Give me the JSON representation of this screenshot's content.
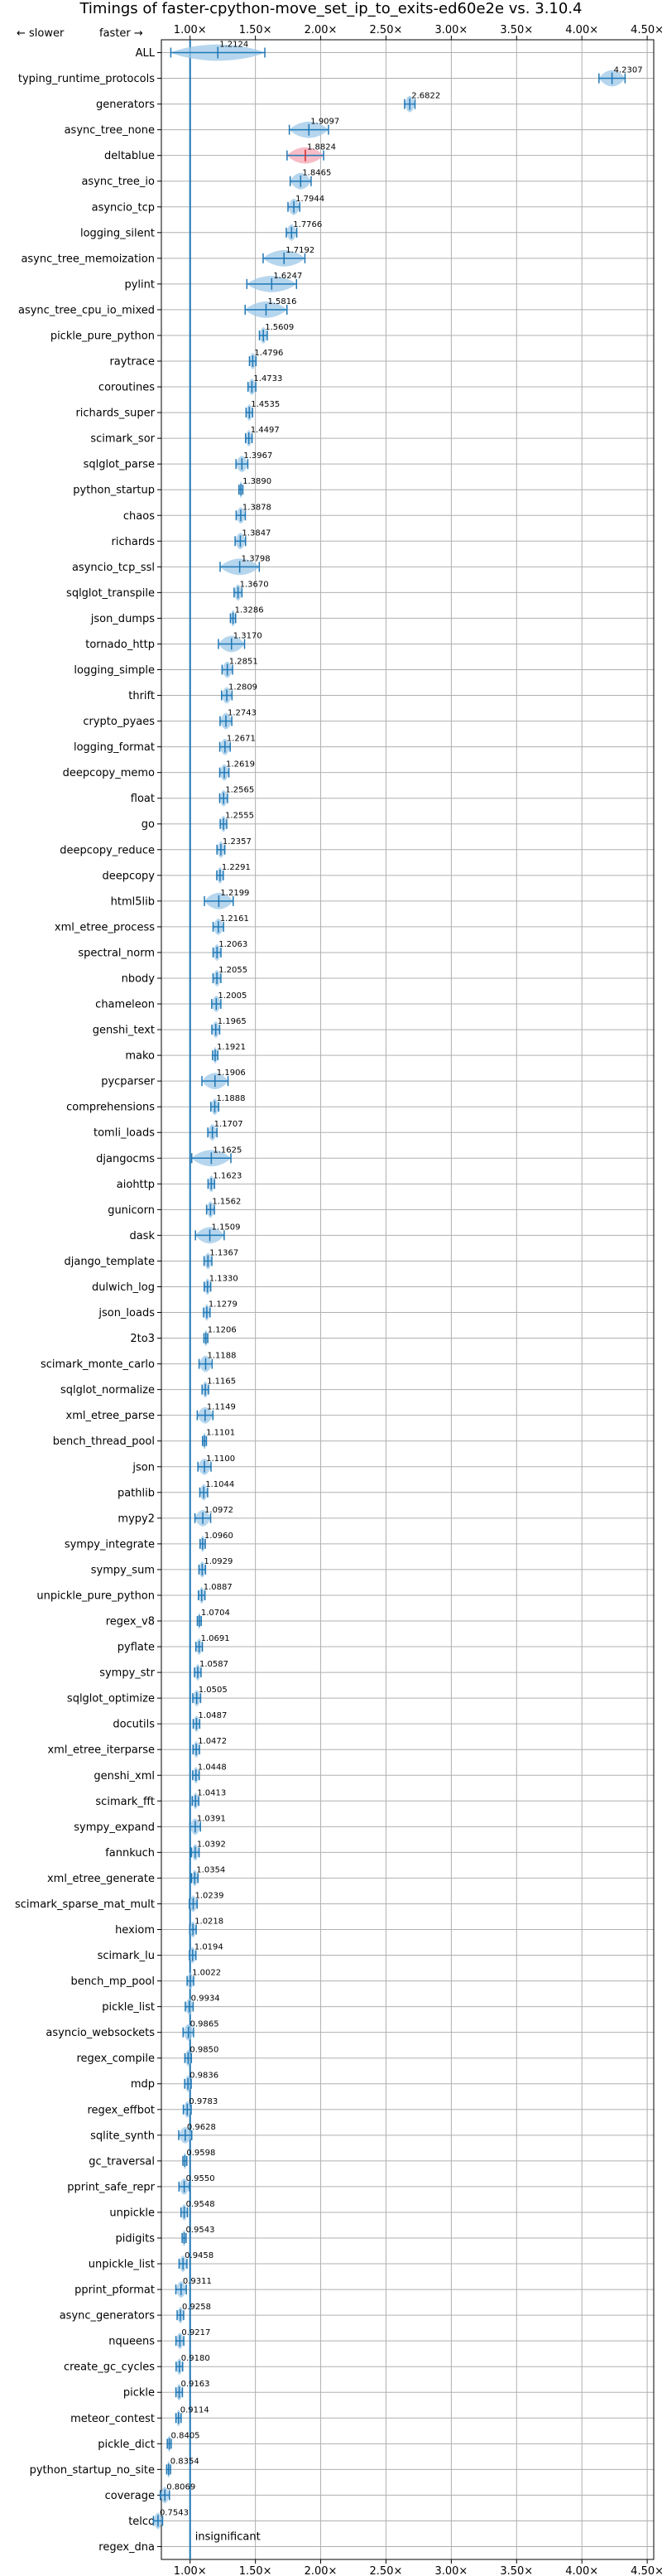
{
  "chart_data": {
    "type": "violin",
    "title": "Timings of faster-cpython-move_set_ip_to_exits-ed60e2e vs. 3.10.4",
    "xlim": [
      0.78,
      4.55
    ],
    "grid": true,
    "reference_x": 1.0,
    "xticks": [
      {
        "value": 1.0,
        "label": "1.00×"
      },
      {
        "value": 1.5,
        "label": "1.50×"
      },
      {
        "value": 2.0,
        "label": "2.00×"
      },
      {
        "value": 2.5,
        "label": "2.50×"
      },
      {
        "value": 3.0,
        "label": "3.00×"
      },
      {
        "value": 3.5,
        "label": "3.50×"
      },
      {
        "value": 4.0,
        "label": "4.00×"
      },
      {
        "value": 4.5,
        "label": "4.50×"
      }
    ],
    "direction_note": {
      "slower": "←  slower",
      "faster": "faster  →"
    },
    "insignificant_label": "insignificant",
    "colors": {
      "violin": "#9ec8e8",
      "line": "#1f77b4",
      "highlight": "#f4a6b4",
      "grid": "#b0b0b0"
    },
    "categories": [
      "ALL",
      "typing_runtime_protocols",
      "generators",
      "async_tree_none",
      "deltablue",
      "async_tree_io",
      "asyncio_tcp",
      "logging_silent",
      "async_tree_memoization",
      "pylint",
      "async_tree_cpu_io_mixed",
      "pickle_pure_python",
      "raytrace",
      "coroutines",
      "richards_super",
      "scimark_sor",
      "sqlglot_parse",
      "python_startup",
      "chaos",
      "richards",
      "asyncio_tcp_ssl",
      "sqlglot_transpile",
      "json_dumps",
      "tornado_http",
      "logging_simple",
      "thrift",
      "crypto_pyaes",
      "logging_format",
      "deepcopy_memo",
      "float",
      "go",
      "deepcopy_reduce",
      "deepcopy",
      "html5lib",
      "xml_etree_process",
      "spectral_norm",
      "nbody",
      "chameleon",
      "genshi_text",
      "mako",
      "pycparser",
      "comprehensions",
      "tomli_loads",
      "djangocms",
      "aiohttp",
      "gunicorn",
      "dask",
      "django_template",
      "dulwich_log",
      "json_loads",
      "2to3",
      "scimark_monte_carlo",
      "sqlglot_normalize",
      "xml_etree_parse",
      "bench_thread_pool",
      "json",
      "pathlib",
      "mypy2",
      "sympy_integrate",
      "sympy_sum",
      "unpickle_pure_python",
      "regex_v8",
      "pyflate",
      "sympy_str",
      "sqlglot_optimize",
      "docutils",
      "xml_etree_iterparse",
      "genshi_xml",
      "scimark_fft",
      "sympy_expand",
      "fannkuch",
      "xml_etree_generate",
      "scimark_sparse_mat_mult",
      "hexiom",
      "scimark_lu",
      "bench_mp_pool",
      "pickle_list",
      "asyncio_websockets",
      "regex_compile",
      "mdp",
      "regex_effbot",
      "sqlite_synth",
      "gc_traversal",
      "pprint_safe_repr",
      "unpickle",
      "pidigits",
      "unpickle_list",
      "pprint_pformat",
      "async_generators",
      "nqueens",
      "create_gc_cycles",
      "pickle",
      "meteor_contest",
      "pickle_dict",
      "python_startup_no_site",
      "coverage",
      "telco",
      "regex_dna"
    ],
    "values": [
      1.2124,
      4.2307,
      2.6822,
      1.9097,
      1.8824,
      1.8465,
      1.7944,
      1.7766,
      1.7192,
      1.6247,
      1.5816,
      1.5609,
      1.4796,
      1.4733,
      1.4535,
      1.4497,
      1.3967,
      1.389,
      1.3878,
      1.3847,
      1.3798,
      1.367,
      1.3286,
      1.317,
      1.2851,
      1.2809,
      1.2743,
      1.2671,
      1.2619,
      1.2565,
      1.2555,
      1.2357,
      1.2291,
      1.2199,
      1.2161,
      1.2063,
      1.2055,
      1.2005,
      1.1965,
      1.1921,
      1.1906,
      1.1888,
      1.1707,
      1.1625,
      1.1623,
      1.1562,
      1.1509,
      1.1367,
      1.133,
      1.1279,
      1.1206,
      1.1188,
      1.1165,
      1.1149,
      1.1101,
      1.11,
      1.1044,
      1.0972,
      1.096,
      1.0929,
      1.0887,
      1.0704,
      1.0691,
      1.0587,
      1.0505,
      1.0487,
      1.0472,
      1.0448,
      1.0413,
      1.0391,
      1.0392,
      1.0354,
      1.0239,
      1.0218,
      1.0194,
      1.0022,
      0.9934,
      0.9865,
      0.985,
      0.9836,
      0.9783,
      0.9628,
      0.9598,
      0.955,
      0.9548,
      0.9543,
      0.9458,
      0.9311,
      0.9258,
      0.9217,
      0.918,
      0.9163,
      0.9114,
      0.8405,
      0.8354,
      0.8069,
      0.7543,
      null
    ],
    "value_labels": [
      "1.2124",
      "4.2307",
      "2.6822",
      "1.9097",
      "1.8824",
      "1.8465",
      "1.7944",
      "1.7766",
      "1.7192",
      "1.6247",
      "1.5816",
      "1.5609",
      "1.4796",
      "1.4733",
      "1.4535",
      "1.4497",
      "1.3967",
      "1.3890",
      "1.3878",
      "1.3847",
      "1.3798",
      "1.3670",
      "1.3286",
      "1.3170",
      "1.2851",
      "1.2809",
      "1.2743",
      "1.2671",
      "1.2619",
      "1.2565",
      "1.2555",
      "1.2357",
      "1.2291",
      "1.2199",
      "1.2161",
      "1.2063",
      "1.2055",
      "1.2005",
      "1.1965",
      "1.1921",
      "1.1906",
      "1.1888",
      "1.1707",
      "1.1625",
      "1.1623",
      "1.1562",
      "1.1509",
      "1.1367",
      "1.1330",
      "1.1279",
      "1.1206",
      "1.1188",
      "1.1165",
      "1.1149",
      "1.1101",
      "1.1100",
      "1.1044",
      "1.0972",
      "1.0960",
      "1.0929",
      "1.0887",
      "1.0704",
      "1.0691",
      "1.0587",
      "1.0505",
      "1.0487",
      "1.0472",
      "1.0448",
      "1.0413",
      "1.0391",
      "1.0392",
      "1.0354",
      "1.0239",
      "1.0218",
      "1.0194",
      "1.0022",
      "0.9934",
      "0.9865",
      "0.9850",
      "0.9836",
      "0.9783",
      "0.9628",
      "0.9598",
      "0.9550",
      "0.9548",
      "0.9543",
      "0.9458",
      "0.9311",
      "0.9258",
      "0.9217",
      "0.9180",
      "0.9163",
      "0.9114",
      "0.8405",
      "0.8354",
      "0.8069",
      "0.7543",
      ""
    ],
    "spread": [
      0.72,
      0.2,
      0.08,
      0.3,
      0.28,
      0.16,
      0.09,
      0.08,
      0.32,
      0.38,
      0.32,
      0.06,
      0.05,
      0.06,
      0.05,
      0.05,
      0.09,
      0.03,
      0.07,
      0.08,
      0.3,
      0.06,
      0.04,
      0.2,
      0.08,
      0.08,
      0.09,
      0.08,
      0.07,
      0.06,
      0.05,
      0.06,
      0.05,
      0.22,
      0.08,
      0.06,
      0.06,
      0.07,
      0.06,
      0.04,
      0.2,
      0.06,
      0.07,
      0.3,
      0.05,
      0.06,
      0.22,
      0.06,
      0.05,
      0.05,
      0.03,
      0.1,
      0.05,
      0.12,
      0.03,
      0.1,
      0.06,
      0.12,
      0.04,
      0.05,
      0.05,
      0.03,
      0.05,
      0.05,
      0.06,
      0.05,
      0.05,
      0.05,
      0.05,
      0.08,
      0.06,
      0.05,
      0.06,
      0.05,
      0.05,
      0.05,
      0.06,
      0.08,
      0.05,
      0.05,
      0.06,
      0.1,
      0.03,
      0.08,
      0.05,
      0.03,
      0.06,
      0.08,
      0.05,
      0.06,
      0.05,
      0.05,
      0.04,
      0.03,
      0.03,
      0.07,
      0.07,
      0
    ],
    "highlighted": [
      "deltablue"
    ]
  }
}
